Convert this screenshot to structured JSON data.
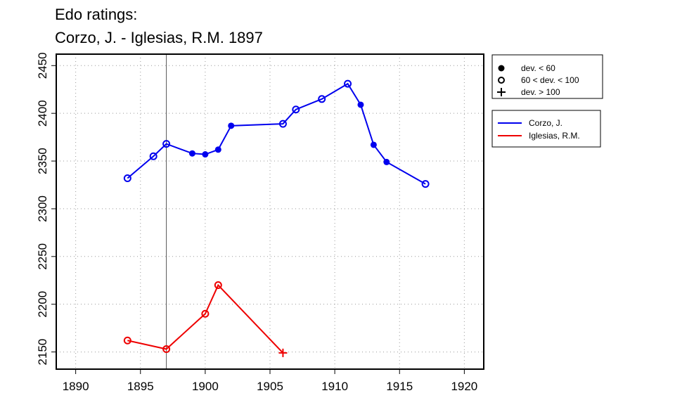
{
  "chart_data": {
    "type": "line",
    "title": [
      "Edo ratings:",
      "Corzo, J. - Iglesias, R.M. 1897"
    ],
    "xlabel": "",
    "ylabel": "",
    "xlim": [
      1888.5,
      1921.5
    ],
    "ylim": [
      2132,
      2462
    ],
    "x_ticks": [
      1890,
      1895,
      1900,
      1905,
      1910,
      1915,
      1920
    ],
    "y_ticks": [
      2150,
      2200,
      2250,
      2300,
      2350,
      2400,
      2450
    ],
    "grid": "dotted",
    "reference_line_x": 1897,
    "marker_legend": [
      {
        "marker": "filled",
        "label": "dev. < 60"
      },
      {
        "marker": "open",
        "label": "60 < dev. < 100"
      },
      {
        "marker": "plus",
        "label": "dev. > 100"
      }
    ],
    "legend_position": "right",
    "series": [
      {
        "name": "Corzo, J.",
        "color": "#0000ee",
        "points": [
          {
            "x": 1894,
            "y": 2332,
            "marker": "open"
          },
          {
            "x": 1896,
            "y": 2355,
            "marker": "open"
          },
          {
            "x": 1897,
            "y": 2368,
            "marker": "open"
          },
          {
            "x": 1899,
            "y": 2358,
            "marker": "filled"
          },
          {
            "x": 1900,
            "y": 2357,
            "marker": "filled"
          },
          {
            "x": 1901,
            "y": 2362,
            "marker": "filled"
          },
          {
            "x": 1902,
            "y": 2387,
            "marker": "filled"
          },
          {
            "x": 1906,
            "y": 2389,
            "marker": "open"
          },
          {
            "x": 1907,
            "y": 2404,
            "marker": "open"
          },
          {
            "x": 1909,
            "y": 2415,
            "marker": "open"
          },
          {
            "x": 1911,
            "y": 2431,
            "marker": "open"
          },
          {
            "x": 1912,
            "y": 2409,
            "marker": "filled"
          },
          {
            "x": 1913,
            "y": 2367,
            "marker": "filled"
          },
          {
            "x": 1914,
            "y": 2349,
            "marker": "filled"
          },
          {
            "x": 1917,
            "y": 2326,
            "marker": "open"
          }
        ]
      },
      {
        "name": "Iglesias, R.M.",
        "color": "#ee0000",
        "points": [
          {
            "x": 1894,
            "y": 2162,
            "marker": "open"
          },
          {
            "x": 1897,
            "y": 2153,
            "marker": "open"
          },
          {
            "x": 1900,
            "y": 2190,
            "marker": "open"
          },
          {
            "x": 1901,
            "y": 2220,
            "marker": "open"
          },
          {
            "x": 1906,
            "y": 2149,
            "marker": "plus"
          }
        ]
      }
    ]
  }
}
